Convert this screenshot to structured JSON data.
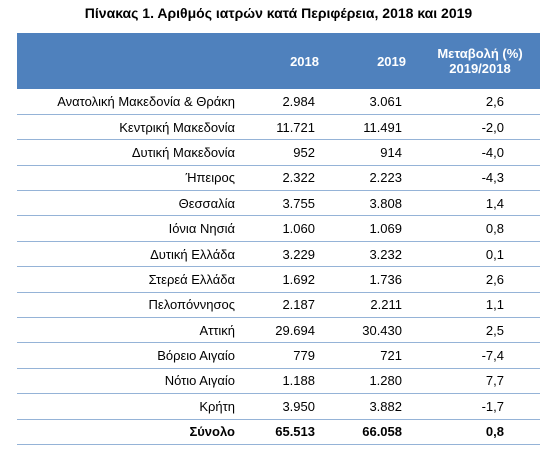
{
  "title": "Πίνακας 1. Αριθμός ιατρών κατά Περιφέρεια, 2018 και 2019",
  "table": {
    "columns": [
      "2018",
      "2019",
      [
        "Μεταβολή (%)",
        "2019/2018"
      ]
    ],
    "rows": [
      [
        "Ανατολική Μακεδονία & Θράκη",
        "2.984",
        "3.061",
        "2,6"
      ],
      [
        "Κεντρική Μακεδονία",
        "11.721",
        "11.491",
        "-2,0"
      ],
      [
        "Δυτική Μακεδονία",
        "952",
        "914",
        "-4,0"
      ],
      [
        "Ήπειρος",
        "2.322",
        "2.223",
        "-4,3"
      ],
      [
        "Θεσσαλία",
        "3.755",
        "3.808",
        "1,4"
      ],
      [
        "Ιόνια Νησιά",
        "1.060",
        "1.069",
        "0,8"
      ],
      [
        "Δυτική Ελλάδα",
        "3.229",
        "3.232",
        "0,1"
      ],
      [
        "Στερεά Ελλάδα",
        "1.692",
        "1.736",
        "2,6"
      ],
      [
        "Πελοπόννησος",
        "2.187",
        "2.211",
        "1,1"
      ],
      [
        "Αττική",
        "29.694",
        "30.430",
        "2,5"
      ],
      [
        "Βόρειο Αιγαίο",
        "779",
        "721",
        "-7,4"
      ],
      [
        "Νότιο Αιγαίο",
        "1.188",
        "1.280",
        "7,7"
      ],
      [
        "Κρήτη",
        "3.950",
        "3.882",
        "-1,7"
      ]
    ],
    "total": [
      "Σύνολο",
      "65.513",
      "66.058",
      "0,8"
    ]
  }
}
